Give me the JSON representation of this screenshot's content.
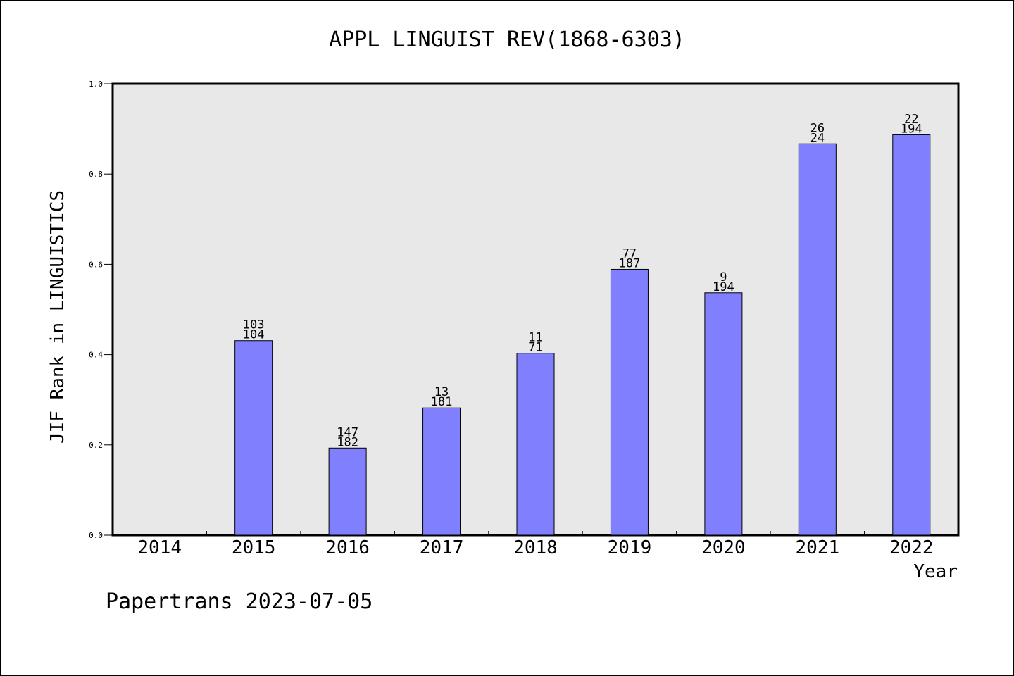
{
  "colors": {
    "plot_background": "#e8e8e8",
    "bar_fill": "#8080ff",
    "bar_stroke": "#000000",
    "axis": "#000000",
    "text": "#000000"
  },
  "chart_data": {
    "type": "bar",
    "title": "APPL LINGUIST REV(1868-6303)",
    "xlabel": "Year",
    "ylabel": "JIF Rank in LINGUISTICS",
    "ylim": [
      0.0,
      1.0
    ],
    "y_ticks": [
      "0.0",
      "0.2",
      "0.4",
      "0.6",
      "0.8",
      "1.0"
    ],
    "grid": false,
    "categories": [
      "2014",
      "2015",
      "2016",
      "2017",
      "2018",
      "2019",
      "2020",
      "2021",
      "2022"
    ],
    "values": [
      null,
      0.431,
      0.193,
      0.282,
      0.403,
      0.589,
      0.537,
      0.867,
      0.887
    ],
    "labels_top": [
      "",
      "103",
      "147",
      "13",
      "11",
      "77",
      "9",
      "26",
      "22"
    ],
    "labels_bottom": [
      "",
      "104",
      "182",
      "181",
      "71",
      "187",
      "194",
      "24",
      "194"
    ]
  },
  "footer": {
    "watermark": "Papertrans 2023-07-05"
  }
}
